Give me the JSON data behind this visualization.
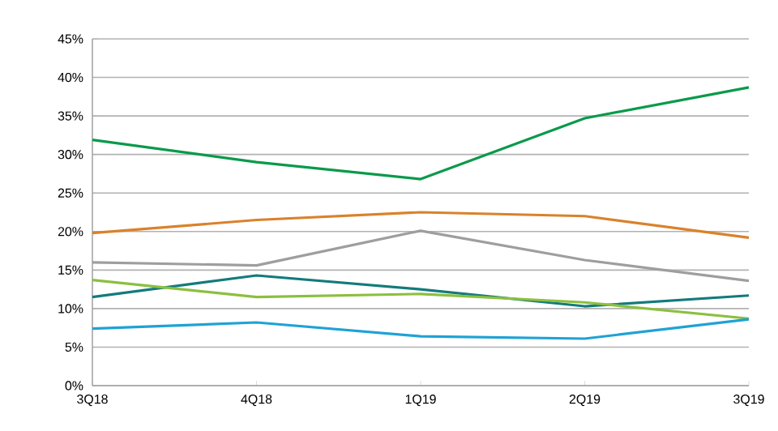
{
  "chart_data": {
    "type": "line",
    "categories": [
      "3Q18",
      "4Q18",
      "1Q19",
      "2Q19",
      "3Q19"
    ],
    "series": [
      {
        "color": "#0a9a4a",
        "values": [
          31.9,
          29,
          26.8,
          34.7,
          38.7
        ]
      },
      {
        "color": "#d9822b",
        "values": [
          19.8,
          21.5,
          22.5,
          22,
          19.2
        ]
      },
      {
        "color": "#9e9e9e",
        "values": [
          16,
          15.6,
          20.1,
          16.3,
          13.6
        ]
      },
      {
        "color": "#137b7b",
        "values": [
          11.5,
          14.3,
          12.5,
          10.3,
          11.7
        ]
      },
      {
        "color": "#8cbf3f",
        "values": [
          13.7,
          11.5,
          11.9,
          10.8,
          8.7
        ]
      },
      {
        "color": "#1fa2d6",
        "values": [
          7.4,
          8.2,
          6.4,
          6.1,
          8.6
        ]
      }
    ],
    "ylim": [
      0,
      45
    ],
    "yticks": [
      {
        "value": 0,
        "label": "0%"
      },
      {
        "value": 5,
        "label": "5%"
      },
      {
        "value": 10,
        "label": "10%"
      },
      {
        "value": 15,
        "label": "15%"
      },
      {
        "value": 20,
        "label": "20%"
      },
      {
        "value": 25,
        "label": "25%"
      },
      {
        "value": 30,
        "label": "30%"
      },
      {
        "value": 35,
        "label": "35%"
      },
      {
        "value": 40,
        "label": "40%"
      },
      {
        "value": 45,
        "label": "45%"
      }
    ],
    "grid": "y",
    "marker": "none",
    "line_style": "solid"
  }
}
